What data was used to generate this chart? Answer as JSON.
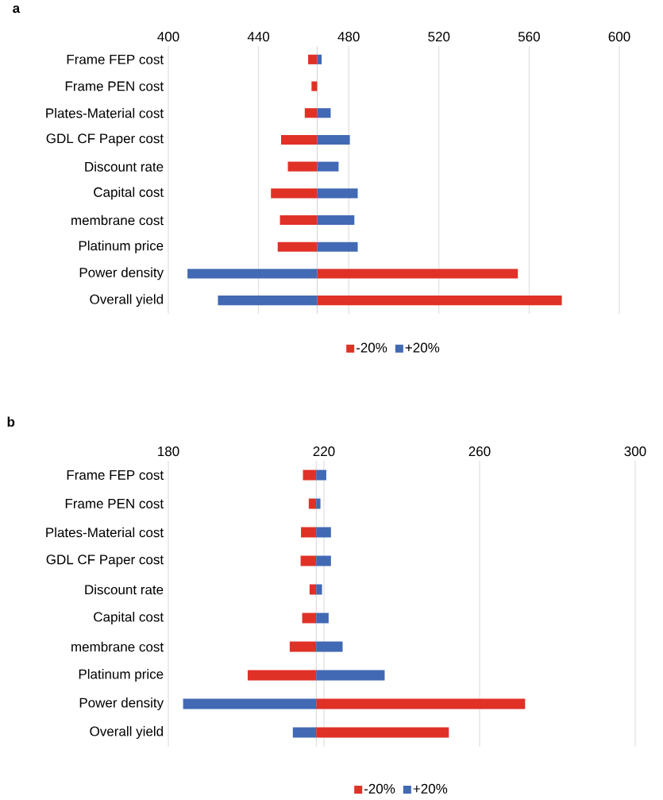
{
  "chart_data": [
    {
      "type": "bar",
      "orientation": "horizontal",
      "title": "a",
      "categories": [
        "Frame FEP cost",
        "Frame PEN cost",
        "Plates-Material cost",
        "GDL CF Paper cost",
        "Discount rate",
        "Capital cost",
        "membrane cost",
        "Platinum price",
        "Power density",
        "Overall yield"
      ],
      "series": [
        {
          "name": "-20%",
          "color": "#e03127",
          "base": [
            466,
            466,
            466,
            466,
            466,
            466,
            466,
            466,
            466,
            466
          ],
          "values": [
            -4,
            -2.5,
            -5.5,
            -16,
            -13,
            -20.5,
            -16.5,
            -17.5,
            89,
            108.5
          ]
        },
        {
          "name": "+20%",
          "color": "#4169b4",
          "base": [
            466,
            null,
            466,
            466,
            466,
            466,
            466,
            466,
            466,
            466
          ],
          "values": [
            2,
            null,
            6,
            14.5,
            9.5,
            18,
            16.5,
            18,
            -57.5,
            -44
          ]
        }
      ],
      "xlim": [
        400,
        600
      ],
      "xticks": [
        400,
        440,
        480,
        520,
        560,
        600
      ],
      "grid": "x",
      "legend": "bottom",
      "ref_lines": [
        {
          "axis": "x",
          "value": 466,
          "color": "#d0d0d0"
        }
      ]
    },
    {
      "type": "bar",
      "orientation": "horizontal",
      "title": "b",
      "categories": [
        "Frame FEP cost",
        "Frame PEN cost",
        "Plates-Material cost",
        "GDL CF Paper cost",
        "Discount rate",
        "Capital cost",
        "membrane cost",
        "Platinum price",
        "Power density",
        "Overall yield"
      ],
      "series": [
        {
          "name": "-20%",
          "color": "#e03127",
          "base": [
            218,
            218,
            218,
            218,
            218,
            218,
            218,
            218,
            218,
            218
          ],
          "values": [
            -3.4,
            -1.9,
            -3.9,
            -4,
            -1.7,
            -3.6,
            -6.8,
            -17.6,
            53.7,
            34.1
          ]
        },
        {
          "name": "+20%",
          "color": "#4169b4",
          "base": [
            218,
            218,
            218,
            218,
            218,
            218,
            218,
            218,
            218,
            218
          ],
          "values": [
            2.6,
            1.1,
            3.8,
            3.8,
            1.5,
            3.2,
            6.8,
            17.6,
            -34.2,
            -6
          ]
        }
      ],
      "xlim": [
        180,
        300
      ],
      "xticks": [
        180,
        220,
        260,
        300
      ],
      "grid": "x",
      "legend": "bottom",
      "ref_lines": [
        {
          "axis": "x",
          "value": 218,
          "color": "#d0d0d0"
        }
      ]
    }
  ]
}
